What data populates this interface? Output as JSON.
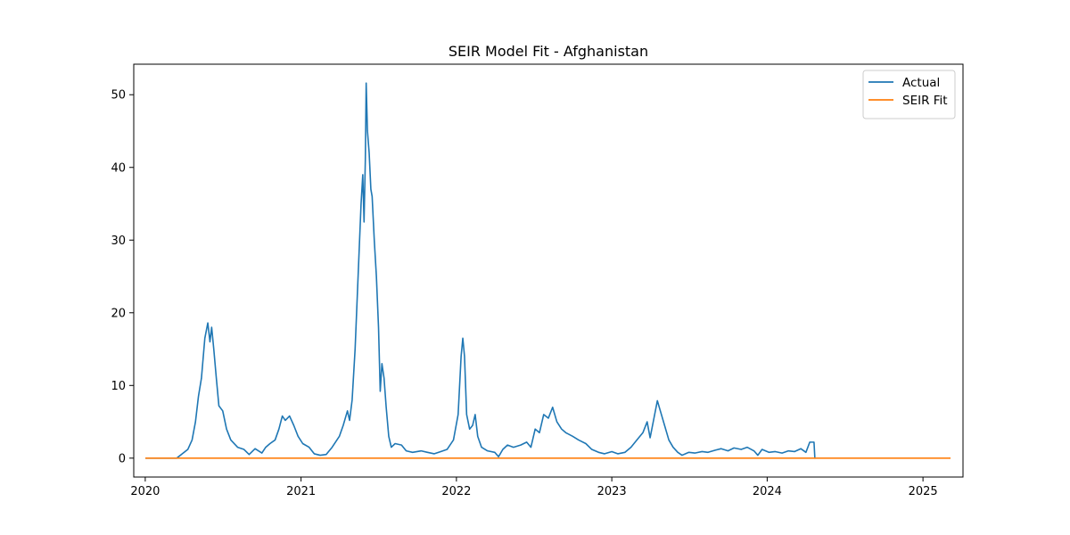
{
  "chart_data": {
    "type": "line",
    "title": "SEIR Model Fit - Afghanistan",
    "xlabel": "",
    "ylabel": "",
    "x_axis_type": "date",
    "xlim": [
      "2019-12-05",
      "2025-04-05"
    ],
    "ylim": [
      -2.6,
      54.2
    ],
    "grid": false,
    "legend_position": "top-right",
    "x_ticks": [
      {
        "value": "2020-01-01",
        "label": "2020"
      },
      {
        "value": "2021-01-01",
        "label": "2021"
      },
      {
        "value": "2022-01-01",
        "label": "2022"
      },
      {
        "value": "2023-01-01",
        "label": "2023"
      },
      {
        "value": "2024-01-01",
        "label": "2024"
      },
      {
        "value": "2025-01-01",
        "label": "2025"
      }
    ],
    "y_ticks": [
      {
        "value": 0,
        "label": "0"
      },
      {
        "value": 10,
        "label": "10"
      },
      {
        "value": 20,
        "label": "20"
      },
      {
        "value": 30,
        "label": "30"
      },
      {
        "value": 40,
        "label": "40"
      },
      {
        "value": 50,
        "label": "50"
      }
    ],
    "series": [
      {
        "name": "Actual",
        "color": "#1f77b4",
        "points": [
          [
            "2020-01-03",
            0
          ],
          [
            "2020-03-15",
            0
          ],
          [
            "2020-03-28",
            0.6
          ],
          [
            "2020-04-10",
            1.2
          ],
          [
            "2020-04-20",
            2.5
          ],
          [
            "2020-04-28",
            5
          ],
          [
            "2020-05-05",
            8.5
          ],
          [
            "2020-05-12",
            11
          ],
          [
            "2020-05-20",
            16.5
          ],
          [
            "2020-05-27",
            18.6
          ],
          [
            "2020-06-01",
            16
          ],
          [
            "2020-06-05",
            18
          ],
          [
            "2020-06-10",
            15
          ],
          [
            "2020-06-16",
            11
          ],
          [
            "2020-06-22",
            7.2
          ],
          [
            "2020-07-01",
            6.5
          ],
          [
            "2020-07-10",
            4
          ],
          [
            "2020-07-20",
            2.5
          ],
          [
            "2020-08-05",
            1.5
          ],
          [
            "2020-08-20",
            1.2
          ],
          [
            "2020-09-01",
            0.5
          ],
          [
            "2020-09-15",
            1.3
          ],
          [
            "2020-10-01",
            0.7
          ],
          [
            "2020-10-10",
            1.5
          ],
          [
            "2020-10-20",
            2
          ],
          [
            "2020-11-01",
            2.5
          ],
          [
            "2020-11-10",
            4
          ],
          [
            "2020-11-18",
            5.8
          ],
          [
            "2020-11-25",
            5.2
          ],
          [
            "2020-12-05",
            5.8
          ],
          [
            "2020-12-15",
            4.5
          ],
          [
            "2020-12-25",
            3
          ],
          [
            "2021-01-05",
            2
          ],
          [
            "2021-01-20",
            1.5
          ],
          [
            "2021-02-01",
            0.6
          ],
          [
            "2021-02-15",
            0.4
          ],
          [
            "2021-03-01",
            0.5
          ],
          [
            "2021-03-15",
            1.5
          ],
          [
            "2021-04-01",
            3
          ],
          [
            "2021-04-10",
            4.5
          ],
          [
            "2021-04-20",
            6.5
          ],
          [
            "2021-04-25",
            5.2
          ],
          [
            "2021-05-01",
            8
          ],
          [
            "2021-05-08",
            15
          ],
          [
            "2021-05-15",
            25
          ],
          [
            "2021-05-22",
            35
          ],
          [
            "2021-05-26",
            39
          ],
          [
            "2021-05-29",
            32.5
          ],
          [
            "2021-06-01",
            41
          ],
          [
            "2021-06-03",
            51.6
          ],
          [
            "2021-06-06",
            45
          ],
          [
            "2021-06-10",
            42
          ],
          [
            "2021-06-14",
            37
          ],
          [
            "2021-06-17",
            36
          ],
          [
            "2021-06-22",
            30
          ],
          [
            "2021-06-27",
            25
          ],
          [
            "2021-07-02",
            18
          ],
          [
            "2021-07-06",
            9.2
          ],
          [
            "2021-07-10",
            13
          ],
          [
            "2021-07-15",
            11
          ],
          [
            "2021-07-20",
            7
          ],
          [
            "2021-07-26",
            3
          ],
          [
            "2021-08-01",
            1.5
          ],
          [
            "2021-08-10",
            2
          ],
          [
            "2021-08-25",
            1.8
          ],
          [
            "2021-09-05",
            1
          ],
          [
            "2021-09-20",
            0.8
          ],
          [
            "2021-10-10",
            1
          ],
          [
            "2021-10-25",
            0.8
          ],
          [
            "2021-11-10",
            0.6
          ],
          [
            "2021-11-25",
            0.9
          ],
          [
            "2021-12-10",
            1.2
          ],
          [
            "2021-12-25",
            2.5
          ],
          [
            "2022-01-05",
            6
          ],
          [
            "2022-01-12",
            14
          ],
          [
            "2022-01-16",
            16.5
          ],
          [
            "2022-01-20",
            14
          ],
          [
            "2022-01-25",
            6
          ],
          [
            "2022-02-01",
            4
          ],
          [
            "2022-02-08",
            4.5
          ],
          [
            "2022-02-14",
            6
          ],
          [
            "2022-02-20",
            3
          ],
          [
            "2022-03-01",
            1.5
          ],
          [
            "2022-03-15",
            1
          ],
          [
            "2022-04-01",
            0.8
          ],
          [
            "2022-04-10",
            0.2
          ],
          [
            "2022-04-20",
            1.2
          ],
          [
            "2022-05-01",
            1.8
          ],
          [
            "2022-05-15",
            1.5
          ],
          [
            "2022-06-01",
            1.8
          ],
          [
            "2022-06-15",
            2.2
          ],
          [
            "2022-06-25",
            1.5
          ],
          [
            "2022-07-05",
            4
          ],
          [
            "2022-07-15",
            3.5
          ],
          [
            "2022-07-25",
            6
          ],
          [
            "2022-08-05",
            5.5
          ],
          [
            "2022-08-15",
            7
          ],
          [
            "2022-08-25",
            5
          ],
          [
            "2022-09-05",
            4
          ],
          [
            "2022-09-15",
            3.5
          ],
          [
            "2022-10-01",
            3
          ],
          [
            "2022-10-15",
            2.5
          ],
          [
            "2022-11-01",
            2
          ],
          [
            "2022-11-15",
            1.2
          ],
          [
            "2022-12-01",
            0.8
          ],
          [
            "2022-12-15",
            0.6
          ],
          [
            "2023-01-01",
            0.9
          ],
          [
            "2023-01-15",
            0.6
          ],
          [
            "2023-02-01",
            0.8
          ],
          [
            "2023-02-15",
            1.5
          ],
          [
            "2023-03-01",
            2.5
          ],
          [
            "2023-03-15",
            3.5
          ],
          [
            "2023-03-25",
            5
          ],
          [
            "2023-04-01",
            2.8
          ],
          [
            "2023-04-10",
            5.5
          ],
          [
            "2023-04-18",
            7.9
          ],
          [
            "2023-04-25",
            6.5
          ],
          [
            "2023-05-05",
            4.5
          ],
          [
            "2023-05-15",
            2.5
          ],
          [
            "2023-05-25",
            1.5
          ],
          [
            "2023-06-05",
            0.8
          ],
          [
            "2023-06-15",
            0.4
          ],
          [
            "2023-07-01",
            0.8
          ],
          [
            "2023-07-15",
            0.7
          ],
          [
            "2023-08-01",
            0.9
          ],
          [
            "2023-08-15",
            0.8
          ],
          [
            "2023-09-01",
            1.1
          ],
          [
            "2023-09-15",
            1.3
          ],
          [
            "2023-10-01",
            1
          ],
          [
            "2023-10-15",
            1.4
          ],
          [
            "2023-11-01",
            1.2
          ],
          [
            "2023-11-15",
            1.5
          ],
          [
            "2023-12-01",
            1
          ],
          [
            "2023-12-10",
            0.4
          ],
          [
            "2023-12-20",
            1.2
          ],
          [
            "2024-01-05",
            0.8
          ],
          [
            "2024-01-20",
            0.9
          ],
          [
            "2024-02-05",
            0.7
          ],
          [
            "2024-02-20",
            1
          ],
          [
            "2024-03-05",
            0.9
          ],
          [
            "2024-03-20",
            1.3
          ],
          [
            "2024-04-01",
            0.8
          ],
          [
            "2024-04-10",
            2.2
          ],
          [
            "2024-04-15",
            2.2
          ],
          [
            "2024-04-20",
            2.2
          ],
          [
            "2024-04-22",
            0
          ]
        ]
      },
      {
        "name": "SEIR Fit",
        "color": "#ff7f0e",
        "points": [
          [
            "2020-01-03",
            0
          ],
          [
            "2025-03-05",
            0
          ]
        ]
      }
    ]
  }
}
